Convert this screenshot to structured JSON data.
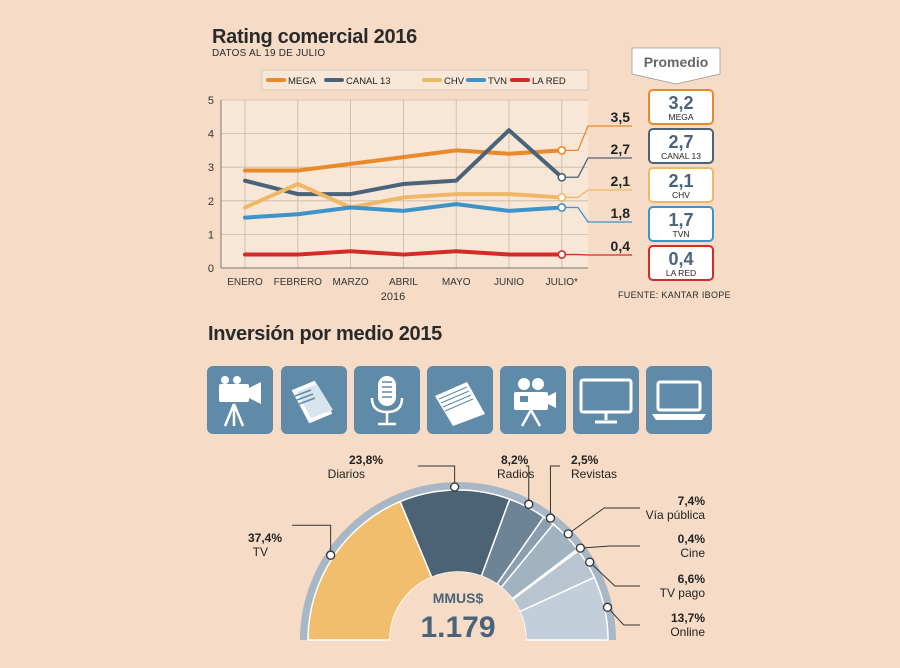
{
  "chart_data": [
    {
      "type": "line",
      "title": "Rating comercial 2016",
      "subtitle": "DATOS AL 19 DE JULIO",
      "xlabel": "2016",
      "categories": [
        "ENERO",
        "FEBRERO",
        "MARZO",
        "ABRIL",
        "MAYO",
        "JUNIO",
        "JULIO*"
      ],
      "ylim": [
        0,
        5
      ],
      "yticks": [
        "0",
        "1",
        "2",
        "3",
        "4",
        "5"
      ],
      "grid": true,
      "legend_position": "top",
      "series": [
        {
          "name": "MEGA",
          "color": "#e8892a",
          "values": [
            2.9,
            2.9,
            3.1,
            3.3,
            3.5,
            3.4,
            3.5
          ],
          "end_label": "3,5"
        },
        {
          "name": "CANAL 13",
          "color": "#4a6378",
          "values": [
            2.6,
            2.2,
            2.2,
            2.5,
            2.6,
            4.1,
            2.7
          ],
          "end_label": "2,7"
        },
        {
          "name": "CHV",
          "color": "#efb866",
          "values": [
            1.8,
            2.5,
            1.8,
            2.1,
            2.2,
            2.2,
            2.1
          ],
          "end_label": "2,1"
        },
        {
          "name": "TVN",
          "color": "#3e93c9",
          "values": [
            1.5,
            1.6,
            1.8,
            1.7,
            1.9,
            1.7,
            1.8
          ],
          "end_label": "1,8"
        },
        {
          "name": "LA RED",
          "color": "#d42a2a",
          "values": [
            0.4,
            0.4,
            0.5,
            0.4,
            0.5,
            0.4,
            0.4
          ],
          "end_label": "0,4"
        }
      ],
      "averages_title": "Promedio",
      "averages": [
        {
          "value": "3,2",
          "name": "MEGA",
          "color": "#e8892a"
        },
        {
          "value": "2,7",
          "name": "CANAL 13",
          "color": "#4a6378"
        },
        {
          "value": "2,1",
          "name": "CHV",
          "color": "#efb866"
        },
        {
          "value": "1,7",
          "name": "TVN",
          "color": "#3e93c9"
        },
        {
          "value": "0,4",
          "name": "LA RED",
          "color": "#d42a2a"
        }
      ],
      "source": "FUENTE: KANTAR IBOPE"
    },
    {
      "type": "pie",
      "title": "Inversión por medio 2015",
      "total_label": "MMUS$",
      "total_value": "1.179",
      "slices": [
        {
          "name": "TV",
          "value": 37.4,
          "label": "37,4%",
          "color": "#f0be6c",
          "icon": "video-camera-icon"
        },
        {
          "name": "Diarios",
          "value": 23.8,
          "label": "23,8%",
          "color": "#4c6376",
          "icon": "newspaper-icon"
        },
        {
          "name": "Radios",
          "value": 8.2,
          "label": "8,2%",
          "color": "#6d8497",
          "icon": "microphone-icon"
        },
        {
          "name": "Revistas",
          "value": 2.5,
          "label": "2,5%",
          "color": "#8c9fb0",
          "icon": "magazine-icon"
        },
        {
          "name": "Vía pública",
          "value": 7.4,
          "label": "7,4%",
          "color": "#a1b2c1",
          "icon": null
        },
        {
          "name": "Cine",
          "value": 0.4,
          "label": "0,4%",
          "color": "#b0bfcc",
          "icon": "film-projector-icon"
        },
        {
          "name": "TV pago",
          "value": 6.6,
          "label": "6,6%",
          "color": "#b8c5d1",
          "icon": "monitor-icon"
        },
        {
          "name": "Online",
          "value": 13.7,
          "label": "13,7%",
          "color": "#c2ced9",
          "icon": "laptop-icon"
        }
      ]
    }
  ],
  "colors": {
    "background": "#f6dcc6",
    "icon_tile": "#5f8aa8",
    "axis": "#555555"
  }
}
